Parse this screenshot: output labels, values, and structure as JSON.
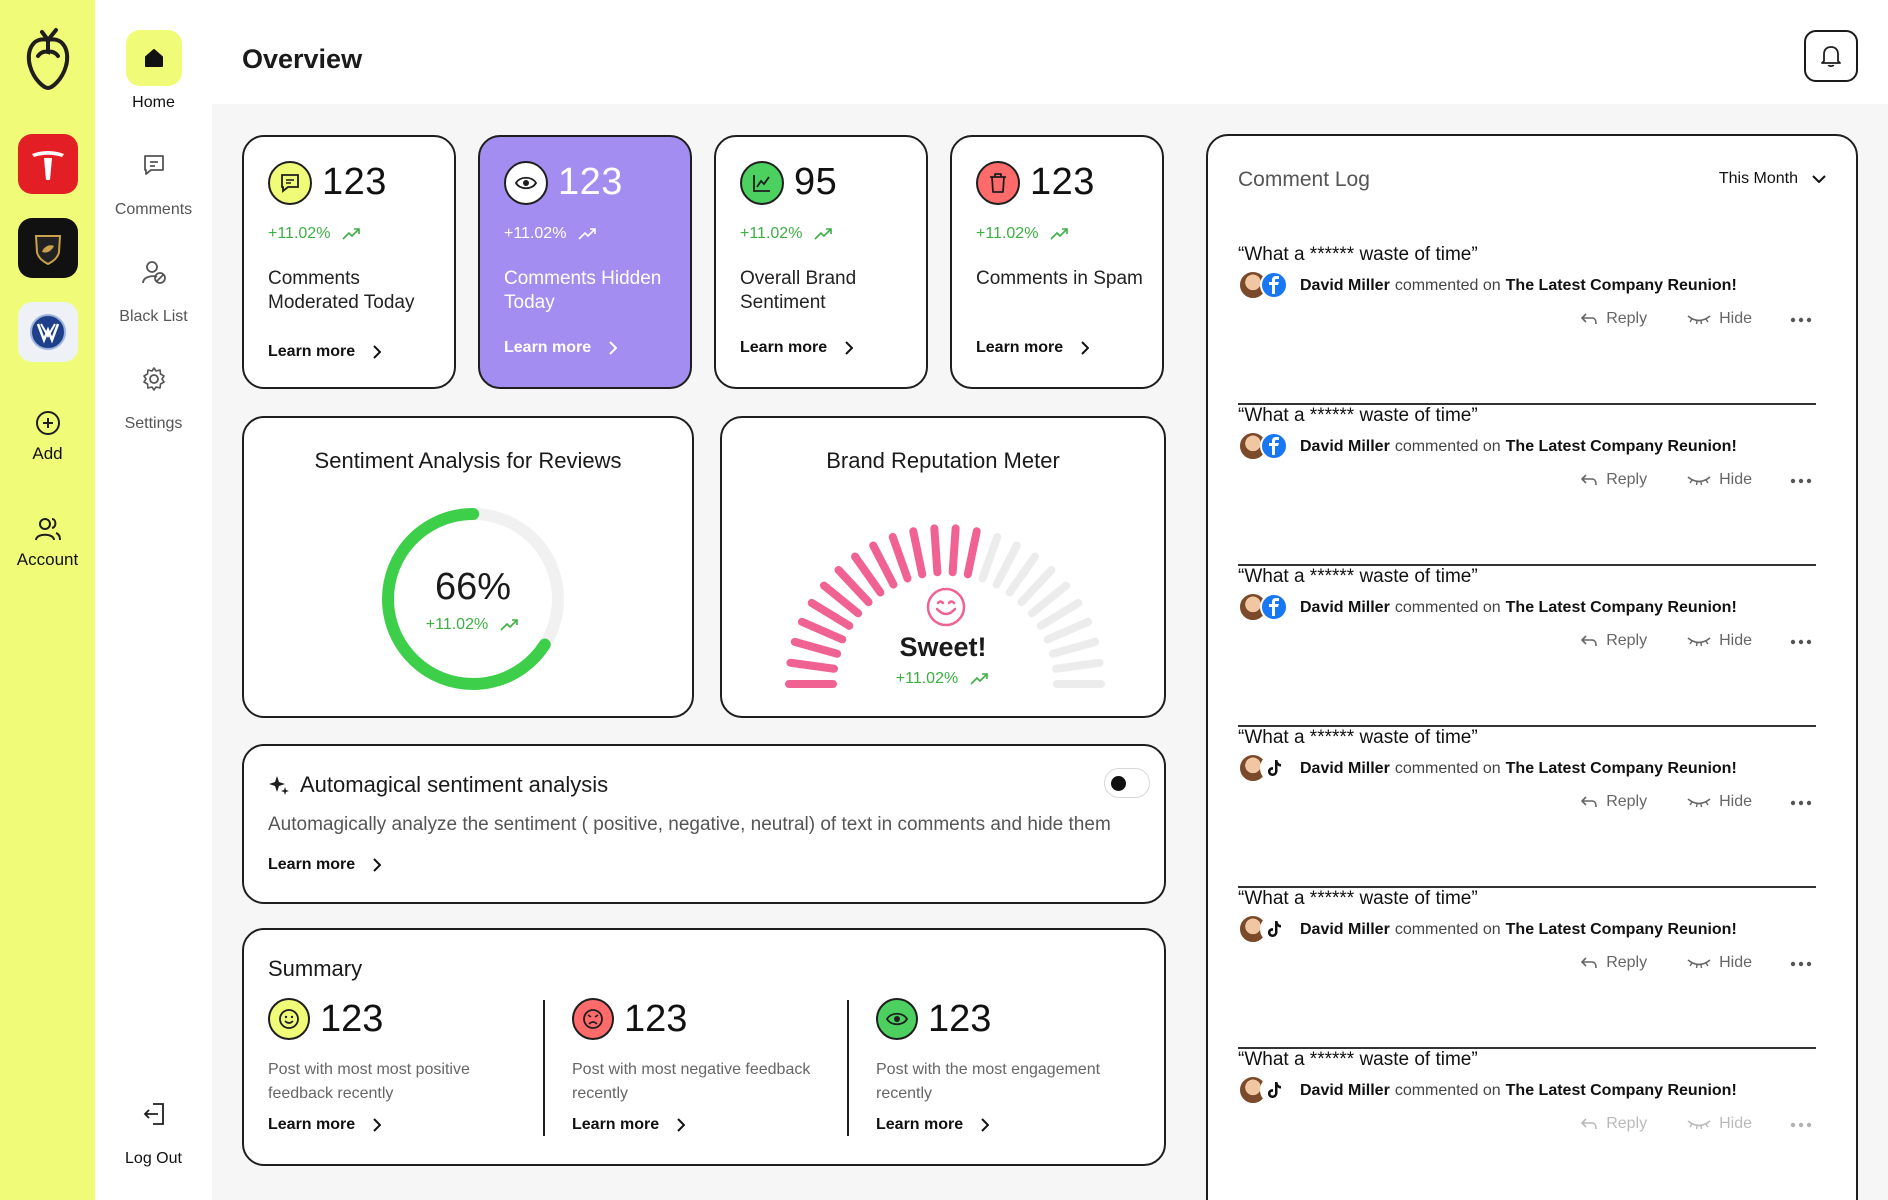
{
  "rail": {
    "brands": [
      "tesla-logo",
      "lamborghini-logo",
      "volkswagen-logo"
    ],
    "add_label": "Add",
    "account_label": "Account"
  },
  "nav": {
    "home": "Home",
    "comments": "Comments",
    "blacklist": "Black List",
    "settings": "Settings",
    "logout": "Log Out"
  },
  "header": {
    "title": "Overview"
  },
  "stats": [
    {
      "value": "123",
      "delta": "+11.02%",
      "label": "Comments Moderated Today",
      "link": "Learn more",
      "badge_color": "#f0fb78"
    },
    {
      "value": "123",
      "delta": "+11.02%",
      "label": "Comments Hidden Today",
      "link": "Learn more",
      "badge_color": "#ffffff"
    },
    {
      "value": "95",
      "delta": "+11.02%",
      "label": "Overall Brand Sentiment",
      "link": "Learn more",
      "badge_color": "#4cd060"
    },
    {
      "value": "123",
      "delta": "+11.02%",
      "label": "Comments in Spam",
      "link": "Learn more",
      "badge_color": "#ff6b6b"
    }
  ],
  "sentiment": {
    "title": "Sentiment Analysis for Reviews",
    "percent": "66%",
    "percent_value": 66,
    "delta": "+11.02%"
  },
  "reputation": {
    "title": "Brand Reputation Meter",
    "status": "Sweet!",
    "delta": "+11.02%",
    "level": 0.58
  },
  "auto": {
    "title": "Automagical sentiment analysis",
    "description": "Automagically analyze the sentiment ( positive, negative, neutral) of text in comments and hide them",
    "link": "Learn more"
  },
  "summary": {
    "title": "Summary",
    "items": [
      {
        "value": "123",
        "text": "Post with most most positive feedback recently",
        "link": "Learn more"
      },
      {
        "value": "123",
        "text": "Post with most negative feedback recently",
        "link": "Learn more"
      },
      {
        "value": "123",
        "text": "Post with the most engagement recently",
        "link": "Learn more"
      }
    ]
  },
  "log": {
    "title": "Comment Log",
    "range": "This Month",
    "items": [
      {
        "quote": "“What a ****** waste of time”",
        "author": "David Miller",
        "verb": "commented on",
        "target": "The Latest Company Reunion!",
        "network": "facebook",
        "reply": "Reply",
        "hide": "Hide"
      },
      {
        "quote": "“What a ****** waste of time”",
        "author": "David Miller",
        "verb": "commented on",
        "target": "The Latest Company Reunion!",
        "network": "facebook",
        "reply": "Reply",
        "hide": "Hide"
      },
      {
        "quote": "“What a ****** waste of time”",
        "author": "David Miller",
        "verb": "commented on",
        "target": "The Latest Company Reunion!",
        "network": "facebook",
        "reply": "Reply",
        "hide": "Hide"
      },
      {
        "quote": "“What a ****** waste of time”",
        "author": "David Miller",
        "verb": "commented on",
        "target": "The Latest Company Reunion!",
        "network": "tiktok",
        "reply": "Reply",
        "hide": "Hide"
      },
      {
        "quote": "“What a ****** waste of time”",
        "author": "David Miller",
        "verb": "commented on",
        "target": "The Latest Company Reunion!",
        "network": "tiktok",
        "reply": "Reply",
        "hide": "Hide"
      },
      {
        "quote": "“What a ****** waste of time”",
        "author": "David Miller",
        "verb": "commented on",
        "target": "The Latest Company Reunion!",
        "network": "tiktok",
        "reply": "Reply",
        "hide": "Hide"
      }
    ]
  },
  "colors": {
    "accent": "#f0fb78",
    "purple": "#a48df0",
    "green": "#3cb043",
    "pink": "#f06292"
  }
}
